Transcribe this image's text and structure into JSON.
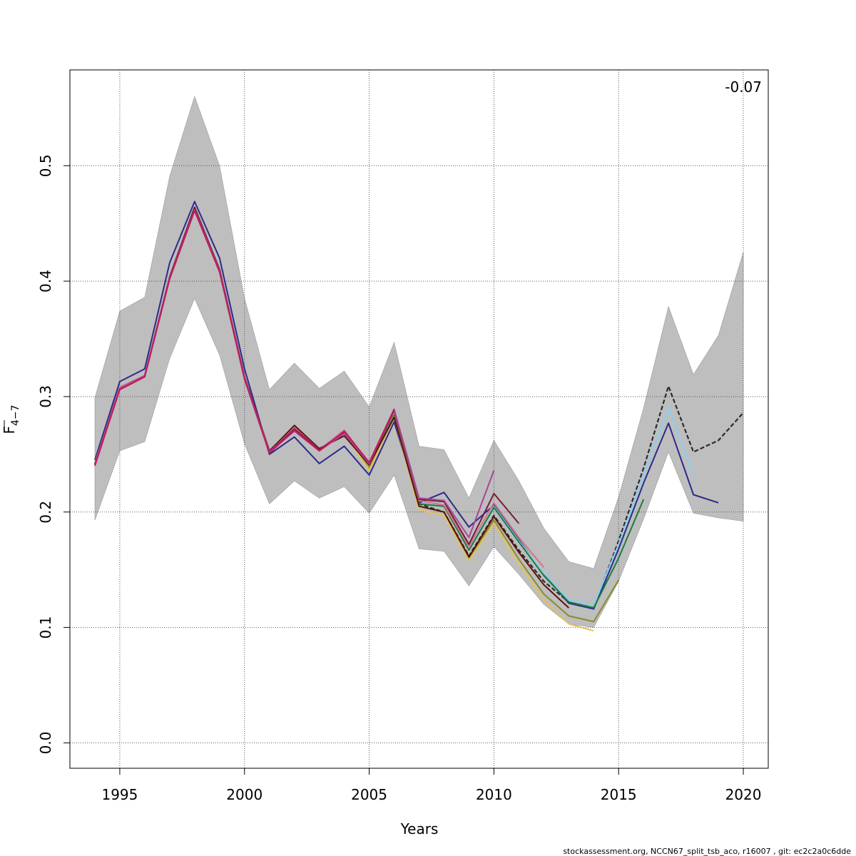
{
  "chart_data": {
    "type": "line",
    "xlabel": "Years",
    "ylabel_main": "F",
    "ylabel_sub": "4−7",
    "annotation": "-0.07",
    "footer": "stockassessment.org, NCCN67_split_tsb_aco, r16007 , git: ec2c2a0c6dde",
    "xlim": [
      1993,
      2021
    ],
    "ylim": [
      -0.022,
      0.583
    ],
    "x_ticks": [
      1995,
      2000,
      2005,
      2010,
      2015,
      2020
    ],
    "y_ticks": [
      0.0,
      0.1,
      0.2,
      0.3,
      0.4,
      0.5
    ],
    "grid": true,
    "band_color": "#bebebe",
    "confidence_band": {
      "x": [
        1994,
        1995,
        1996,
        1997,
        1998,
        1999,
        2000,
        2001,
        2002,
        2003,
        2004,
        2005,
        2006,
        2007,
        2008,
        2009,
        2010,
        2011,
        2012,
        2013,
        2014,
        2015,
        2016,
        2017,
        2018,
        2019,
        2020
      ],
      "upper": [
        0.299,
        0.374,
        0.386,
        0.491,
        0.56,
        0.5,
        0.385,
        0.306,
        0.329,
        0.307,
        0.322,
        0.291,
        0.347,
        0.257,
        0.254,
        0.212,
        0.262,
        0.227,
        0.186,
        0.157,
        0.151,
        0.213,
        0.29,
        0.378,
        0.319,
        0.353,
        0.425
      ],
      "lower": [
        0.193,
        0.253,
        0.261,
        0.333,
        0.385,
        0.336,
        0.259,
        0.207,
        0.227,
        0.212,
        0.222,
        0.199,
        0.232,
        0.168,
        0.166,
        0.136,
        0.17,
        0.146,
        0.12,
        0.103,
        0.1,
        0.14,
        0.194,
        0.252,
        0.199,
        0.195,
        0.192
      ]
    },
    "series": [
      {
        "color": "#2b2b2b",
        "dashed": true,
        "width": 2.2,
        "x": [
          1994,
          1995,
          1996,
          1997,
          1998,
          1999,
          2000,
          2001,
          2002,
          2003,
          2004,
          2005,
          2006,
          2007,
          2008,
          2009,
          2010,
          2011,
          2012,
          2013,
          2014,
          2015,
          2016,
          2017,
          2018,
          2019,
          2020
        ],
        "y": [
          0.242,
          0.307,
          0.318,
          0.403,
          0.463,
          0.41,
          0.316,
          0.252,
          0.273,
          0.254,
          0.268,
          0.241,
          0.284,
          0.207,
          0.2,
          0.162,
          0.197,
          0.167,
          0.14,
          0.122,
          0.117,
          0.175,
          0.238,
          0.309,
          0.252,
          0.262,
          0.286
        ]
      },
      {
        "color": "#2c2a8c",
        "dashed": false,
        "width": 2,
        "x": [
          1994,
          1995,
          1996,
          1997,
          1998,
          1999,
          2000,
          2001,
          2002,
          2003,
          2004,
          2005,
          2006,
          2007,
          2008,
          2009,
          2010,
          2011,
          2012,
          2013,
          2014,
          2015,
          2016,
          2017,
          2018,
          2019
        ],
        "y": [
          0.245,
          0.313,
          0.324,
          0.416,
          0.469,
          0.42,
          0.324,
          0.25,
          0.265,
          0.242,
          0.257,
          0.232,
          0.278,
          0.208,
          0.217,
          0.187,
          0.206,
          0.176,
          0.146,
          0.121,
          0.116,
          0.168,
          0.225,
          0.277,
          0.215,
          0.208
        ]
      },
      {
        "color": "#89cff0",
        "dashed": false,
        "width": 2,
        "x": [
          1994,
          1995,
          1996,
          1997,
          1998,
          1999,
          2000,
          2001,
          2002,
          2003,
          2004,
          2005,
          2006,
          2007,
          2008,
          2009,
          2010,
          2011,
          2012,
          2013,
          2014,
          2015,
          2016,
          2017,
          2018
        ],
        "y": [
          0.242,
          0.308,
          0.318,
          0.404,
          0.463,
          0.41,
          0.317,
          0.252,
          0.272,
          0.254,
          0.268,
          0.24,
          0.284,
          0.207,
          0.206,
          0.168,
          0.205,
          0.175,
          0.147,
          0.124,
          0.119,
          0.172,
          0.232,
          0.29,
          0.232
        ]
      },
      {
        "color": "#1e7b3a",
        "dashed": false,
        "width": 2,
        "x": [
          1994,
          1995,
          1996,
          1997,
          1998,
          1999,
          2000,
          2001,
          2002,
          2003,
          2004,
          2005,
          2006,
          2007,
          2008,
          2009,
          2010,
          2011,
          2012,
          2013,
          2014,
          2015,
          2016
        ],
        "y": [
          0.242,
          0.308,
          0.318,
          0.403,
          0.463,
          0.409,
          0.316,
          0.252,
          0.272,
          0.254,
          0.268,
          0.24,
          0.284,
          0.207,
          0.205,
          0.167,
          0.204,
          0.174,
          0.145,
          0.122,
          0.117,
          0.16,
          0.211
        ]
      },
      {
        "color": "#8b8b2a",
        "dashed": false,
        "width": 2,
        "x": [
          1994,
          1995,
          1996,
          1997,
          1998,
          1999,
          2000,
          2001,
          2002,
          2003,
          2004,
          2005,
          2006,
          2007,
          2008,
          2009,
          2010,
          2011,
          2012,
          2013,
          2014,
          2015
        ],
        "y": [
          0.242,
          0.308,
          0.318,
          0.403,
          0.462,
          0.409,
          0.316,
          0.252,
          0.272,
          0.254,
          0.268,
          0.239,
          0.283,
          0.205,
          0.2,
          0.16,
          0.193,
          0.159,
          0.129,
          0.11,
          0.105,
          0.141
        ]
      },
      {
        "color": "#e2c35a",
        "dashed": false,
        "width": 2,
        "x": [
          1994,
          1995,
          1996,
          1997,
          1998,
          1999,
          2000,
          2001,
          2002,
          2003,
          2004,
          2005,
          2006,
          2007,
          2008,
          2009,
          2010,
          2011,
          2012,
          2013,
          2014
        ],
        "y": [
          0.242,
          0.308,
          0.318,
          0.403,
          0.462,
          0.409,
          0.316,
          0.252,
          0.272,
          0.254,
          0.268,
          0.236,
          0.282,
          0.202,
          0.197,
          0.158,
          0.19,
          0.155,
          0.124,
          0.103,
          0.097
        ]
      },
      {
        "color": "#5a1010",
        "dashed": false,
        "width": 2,
        "x": [
          1994,
          1995,
          1996,
          1997,
          1998,
          1999,
          2000,
          2001,
          2002,
          2003,
          2004,
          2005,
          2006,
          2007,
          2008,
          2009,
          2010,
          2011,
          2012,
          2013
        ],
        "y": [
          0.242,
          0.308,
          0.318,
          0.404,
          0.464,
          0.41,
          0.317,
          0.253,
          0.275,
          0.255,
          0.266,
          0.241,
          0.282,
          0.205,
          0.2,
          0.161,
          0.196,
          0.165,
          0.137,
          0.117
        ]
      },
      {
        "color": "#d4748a",
        "dashed": false,
        "width": 2,
        "x": [
          1994,
          1995,
          1996,
          1997,
          1998,
          1999,
          2000,
          2001,
          2002,
          2003,
          2004,
          2005,
          2006,
          2007,
          2008,
          2009,
          2010,
          2011,
          2012
        ],
        "y": [
          0.242,
          0.308,
          0.318,
          0.403,
          0.462,
          0.409,
          0.316,
          0.252,
          0.273,
          0.254,
          0.271,
          0.242,
          0.288,
          0.21,
          0.206,
          0.17,
          0.208,
          0.178,
          0.152
        ]
      },
      {
        "color": "#7a1a3a",
        "dashed": false,
        "width": 2,
        "x": [
          1994,
          1995,
          1996,
          1997,
          1998,
          1999,
          2000,
          2001,
          2002,
          2003,
          2004,
          2005,
          2006,
          2007,
          2008,
          2009,
          2010,
          2011
        ],
        "y": [
          0.241,
          0.307,
          0.318,
          0.403,
          0.462,
          0.409,
          0.316,
          0.252,
          0.272,
          0.254,
          0.269,
          0.242,
          0.288,
          0.211,
          0.209,
          0.172,
          0.216,
          0.19
        ]
      },
      {
        "color": "#a8479a",
        "dashed": false,
        "width": 2,
        "x": [
          1994,
          1995,
          1996,
          1997,
          1998,
          1999,
          2000,
          2001,
          2002,
          2003,
          2004,
          2005,
          2006,
          2007,
          2008,
          2009,
          2010
        ],
        "y": [
          0.241,
          0.307,
          0.318,
          0.403,
          0.462,
          0.409,
          0.316,
          0.252,
          0.27,
          0.253,
          0.268,
          0.242,
          0.289,
          0.212,
          0.21,
          0.178,
          0.236
        ]
      },
      {
        "color": "#c2185b",
        "dashed": false,
        "width": 2,
        "x": [
          1994,
          1995,
          1996,
          1997,
          1998,
          1999,
          2000,
          2001,
          2002,
          2003,
          2004,
          2005,
          2006
        ],
        "y": [
          0.24,
          0.306,
          0.317,
          0.402,
          0.461,
          0.408,
          0.315,
          0.251,
          0.271,
          0.253,
          0.27,
          0.243,
          0.289
        ]
      }
    ]
  }
}
